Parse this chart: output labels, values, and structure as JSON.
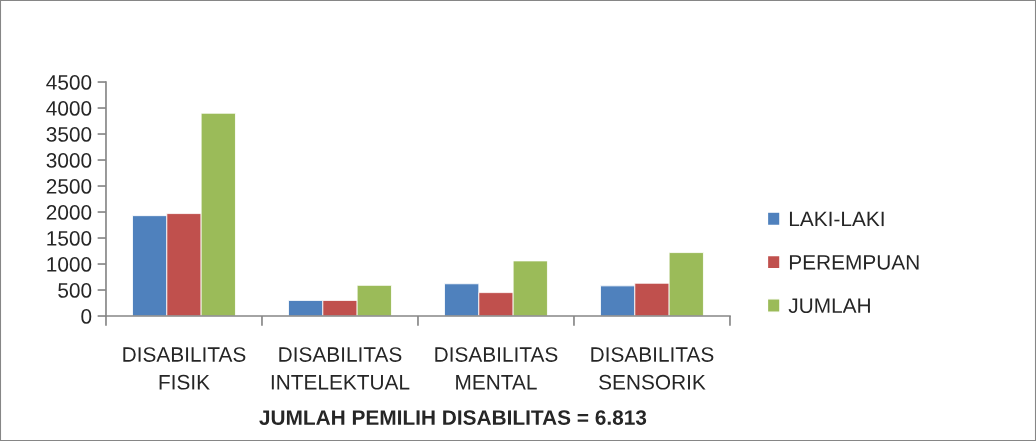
{
  "chart_data": {
    "type": "bar",
    "xlabel": "JUMLAH PEMILIH DISABILITAS = 6.813",
    "categories": [
      "DISABILITAS\nFISIK",
      "DISABILITAS\nINTELEKTUAL",
      "DISABILITAS\nMENTAL",
      "DISABILITAS\nSENSORIK"
    ],
    "series": [
      {
        "name": "LAKI-LAKI",
        "color": "#4f81bd",
        "values": [
          1930,
          300,
          620,
          580
        ]
      },
      {
        "name": "PEREMPUAN",
        "color": "#c0504d",
        "values": [
          1970,
          300,
          450,
          630
        ]
      },
      {
        "name": "JUMLAH",
        "color": "#9bbb59",
        "values": [
          3900,
          590,
          1060,
          1220
        ]
      }
    ],
    "ylim": [
      0,
      4500
    ],
    "yticks": [
      0,
      500,
      1000,
      1500,
      2000,
      2500,
      3000,
      3500,
      4000,
      4500
    ],
    "grid": false,
    "legend": "right"
  }
}
